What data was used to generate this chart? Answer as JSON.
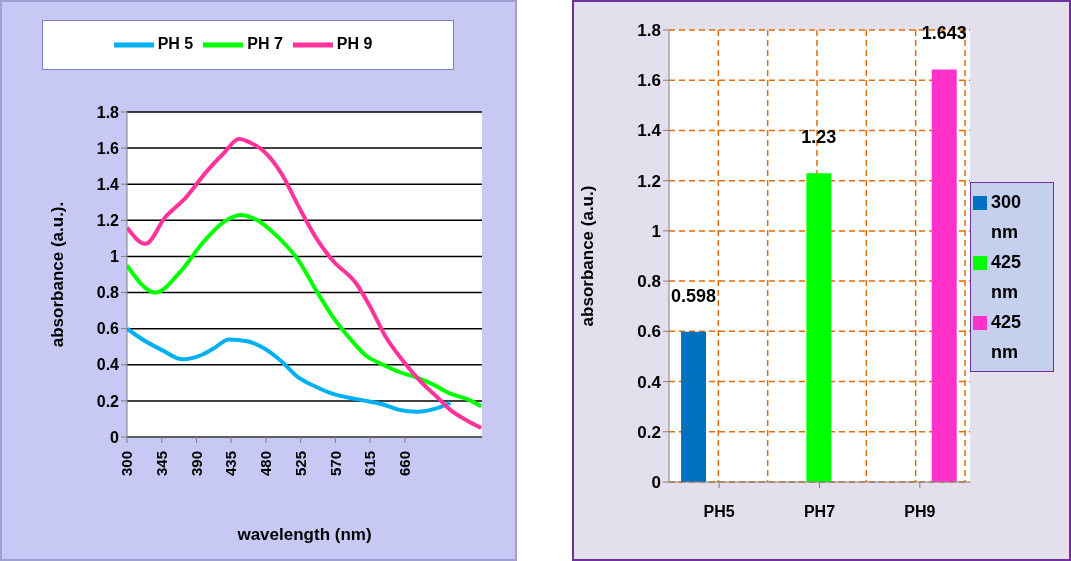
{
  "chart_data": [
    {
      "type": "line",
      "xlabel": "wavelength (nm)",
      "ylabel": "absorbance (a.u.).",
      "xlim": [
        300,
        760
      ],
      "xticks": [
        300,
        345,
        390,
        435,
        480,
        525,
        570,
        615,
        660
      ],
      "ylim": [
        0,
        1.8
      ],
      "yticks": [
        0,
        0.2,
        0.4,
        0.6,
        0.8,
        1,
        1.2,
        1.4,
        1.6,
        1.8
      ],
      "grid": "y",
      "legend": "top",
      "series": [
        {
          "name": "PH 5",
          "color": "#00b0f0",
          "x": [
            300,
            324,
            346,
            372,
            394,
            412,
            432,
            456,
            478,
            500,
            522,
            544,
            566,
            597,
            632,
            653,
            675,
            702,
            719
          ],
          "values": [
            0.6,
            0.53,
            0.48,
            0.43,
            0.45,
            0.49,
            0.54,
            0.53,
            0.49,
            0.42,
            0.33,
            0.28,
            0.24,
            0.21,
            0.18,
            0.15,
            0.14,
            0.16,
            0.19
          ]
        },
        {
          "name": "PH 7",
          "color": "#00ff00",
          "x": [
            300,
            337,
            368,
            399,
            425,
            447,
            469,
            495,
            522,
            544,
            566,
            588,
            610,
            632,
            653,
            675,
            697,
            719,
            741,
            759
          ],
          "values": [
            0.95,
            0.8,
            0.91,
            1.08,
            1.19,
            1.23,
            1.2,
            1.11,
            0.98,
            0.82,
            0.67,
            0.55,
            0.45,
            0.4,
            0.36,
            0.33,
            0.29,
            0.24,
            0.21,
            0.17
          ]
        },
        {
          "name": "PH 9",
          "color": "#ff3399",
          "x": [
            300,
            324,
            350,
            375,
            403,
            425,
            445,
            460,
            478,
            500,
            522,
            544,
            566,
            597,
            614,
            636,
            658,
            680,
            702,
            719,
            741,
            759
          ],
          "values": [
            1.16,
            1.07,
            1.22,
            1.32,
            1.47,
            1.57,
            1.65,
            1.63,
            1.58,
            1.46,
            1.28,
            1.11,
            0.98,
            0.85,
            0.73,
            0.55,
            0.42,
            0.31,
            0.22,
            0.15,
            0.09,
            0.05
          ]
        }
      ]
    },
    {
      "type": "bar",
      "ylabel": "absorbance (a.u.)",
      "categories": [
        "PH5",
        "PH7",
        "PH9"
      ],
      "ylim": [
        0,
        1.8
      ],
      "yticks": [
        0,
        0.2,
        0.4,
        0.6,
        0.8,
        1,
        1.2,
        1.4,
        1.6,
        1.8
      ],
      "grid": true,
      "legend": "right",
      "data_labels": true,
      "series": [
        {
          "name": "300 nm",
          "color": "#0070c0",
          "values": [
            0.598,
            null,
            null
          ]
        },
        {
          "name": "425 nm",
          "color": "#00ff00",
          "values": [
            null,
            1.23,
            null
          ]
        },
        {
          "name": "425 nm",
          "color": "#ff33cc",
          "values": [
            null,
            null,
            1.643
          ]
        }
      ]
    }
  ]
}
